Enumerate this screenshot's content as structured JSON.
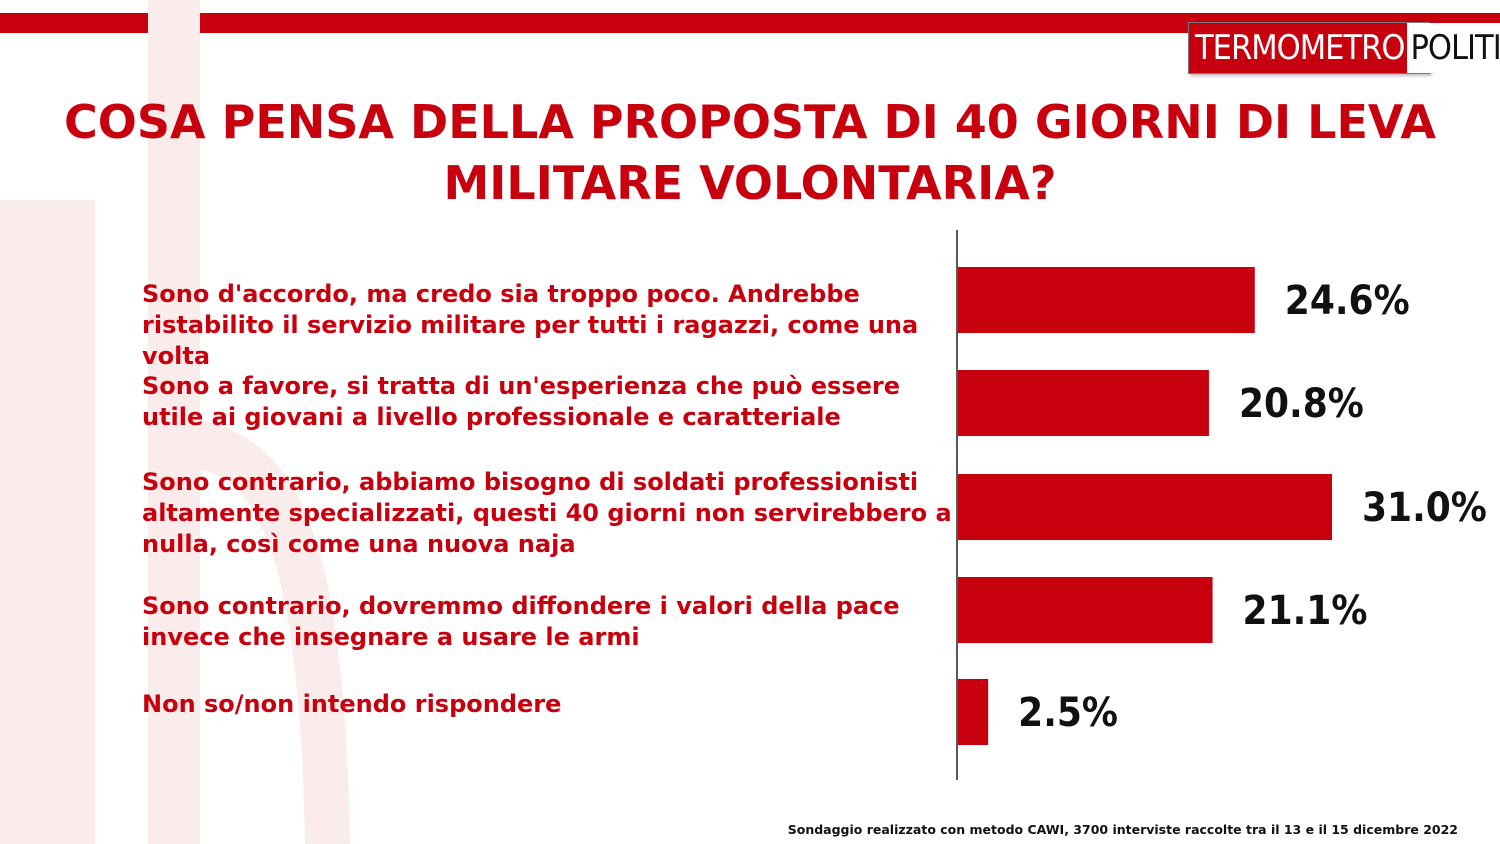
{
  "logo": {
    "part1": "TERMOMETRO",
    "part2": "POLITICO"
  },
  "title_lines": [
    "COSA PENSA DELLA PROPOSTA DI 40 GIORNI DI LEVA",
    "MILITARE VOLONTARIA?"
  ],
  "colors": {
    "accent": "#c8000e",
    "value_text": "#111111",
    "axis": "#222222"
  },
  "chart_data": {
    "type": "bar",
    "orientation": "horizontal",
    "categories": [
      [
        "Sono d'accordo, ma credo sia troppo poco. Andrebbe",
        "ristabilito il servizio militare per tutti i ragazzi, come una volta"
      ],
      [
        "Sono a favore, si tratta di un'esperienza che può essere",
        "utile ai giovani a livello professionale e caratteriale"
      ],
      [
        "Sono contrario, abbiamo bisogno di soldati professionisti",
        "altamente specializzati, questi 40 giorni non servirebbero a",
        "nulla, così come una nuova naja"
      ],
      [
        "Sono contrario, dovremmo diffondere i valori della pace",
        "invece che insegnare a usare le armi"
      ],
      [
        "Non so/non intendo rispondere"
      ]
    ],
    "values": [
      24.6,
      20.8,
      31.0,
      21.1,
      2.5
    ],
    "value_labels": [
      "24.6%",
      "20.8%",
      "31.0%",
      "21.1%",
      "2.5%"
    ],
    "unit": "%",
    "xlim": [
      0,
      31.0
    ],
    "grid": false,
    "legend": "none"
  },
  "footer": "Sondaggio realizzato con metodo CAWI, 3700 interviste raccolte tra il 13 e il 15 dicembre 2022"
}
